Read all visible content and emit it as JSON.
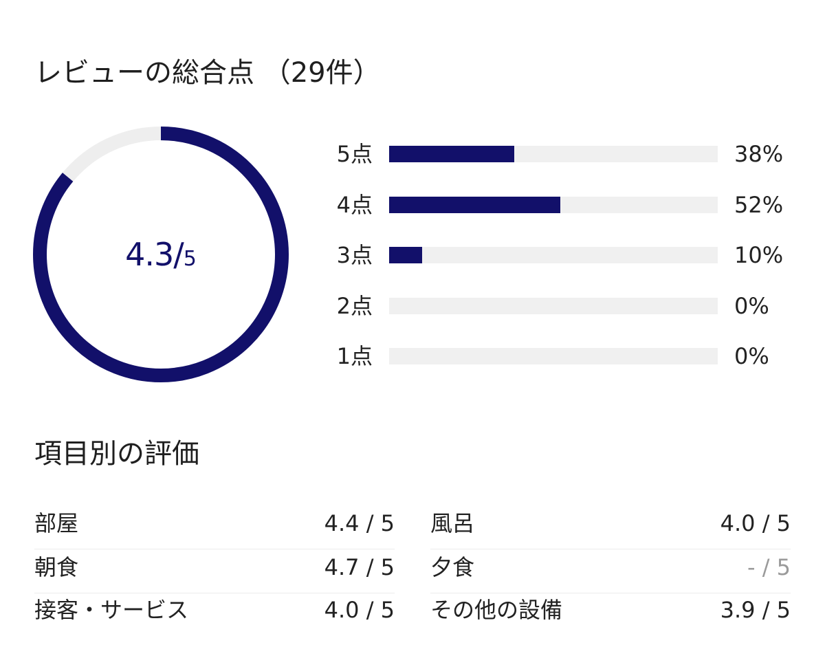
{
  "overall": {
    "title": "レビューの総合点 （29件）",
    "score_value": "4.3/",
    "score_max": "5",
    "score_fraction": 0.86,
    "colors": {
      "accent": "#12106a",
      "track": "#eeeeee"
    }
  },
  "distribution": [
    {
      "label": "5点",
      "percent_text": "38%",
      "percent": 38
    },
    {
      "label": "4点",
      "percent_text": "52%",
      "percent": 52
    },
    {
      "label": "3点",
      "percent_text": "10%",
      "percent": 10
    },
    {
      "label": "2点",
      "percent_text": "0%",
      "percent": 0
    },
    {
      "label": "1点",
      "percent_text": "0%",
      "percent": 0
    }
  ],
  "categories": {
    "title": "項目別の評価",
    "left": [
      {
        "name": "部屋",
        "score": "4.4 / 5"
      },
      {
        "name": "朝食",
        "score": "4.7 / 5"
      },
      {
        "name": "接客・サービス",
        "score": "4.0 / 5"
      }
    ],
    "right": [
      {
        "name": "風呂",
        "score": "4.0 / 5"
      },
      {
        "name": "夕食",
        "score": "- / 5"
      },
      {
        "name": "その他の設備",
        "score": "3.9 / 5"
      }
    ]
  }
}
